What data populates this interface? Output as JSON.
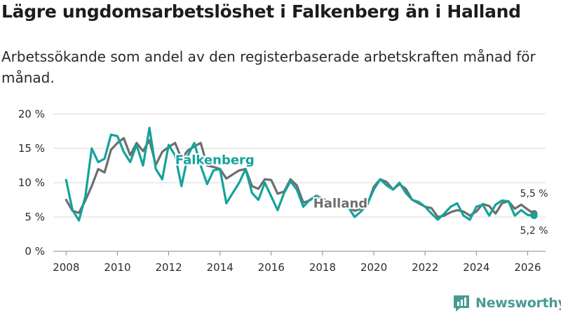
{
  "title": "Lägre ungdomsarbetslöshet i Falkenberg än i Halland",
  "subtitle": "Arbetssökande som andel av den registerbaserade arbetskraften månad för månad.",
  "brand": {
    "name": "Newsworthy",
    "color": "#4a9a94"
  },
  "chart_data": {
    "type": "line",
    "title": "Lägre ungdomsarbetslöshet i Falkenberg än i Halland",
    "xlabel": "",
    "ylabel": "",
    "xlim": [
      2007.5,
      2026.7
    ],
    "ylim": [
      0,
      20
    ],
    "y_ticks": [
      0,
      5,
      10,
      15,
      20
    ],
    "y_tick_labels": [
      "0 %",
      "5 %",
      "10 %",
      "15 %",
      "20 %"
    ],
    "x_ticks": [
      2008,
      2010,
      2012,
      2014,
      2016,
      2018,
      2020,
      2022,
      2024,
      2026
    ],
    "x_tick_labels": [
      "2008",
      "2010",
      "2012",
      "2014",
      "2016",
      "2018",
      "2020",
      "2022",
      "2024",
      "2026"
    ],
    "grid": true,
    "series": [
      {
        "name": "Halland",
        "color": "#6e6e6e",
        "label_pos": [
          2018.7,
          6.4
        ],
        "end_label": "5,5 %",
        "x": [
          2008.0,
          2008.25,
          2008.5,
          2008.75,
          2009.0,
          2009.25,
          2009.5,
          2009.75,
          2010.0,
          2010.25,
          2010.5,
          2010.75,
          2011.0,
          2011.25,
          2011.5,
          2011.75,
          2012.0,
          2012.25,
          2012.5,
          2012.75,
          2013.0,
          2013.25,
          2013.5,
          2013.75,
          2014.0,
          2014.25,
          2014.5,
          2014.75,
          2015.0,
          2015.25,
          2015.5,
          2015.75,
          2016.0,
          2016.25,
          2016.5,
          2016.75,
          2017.0,
          2017.25,
          2017.5,
          2017.75,
          2018.0,
          2018.25,
          2018.5,
          2018.75,
          2019.0,
          2019.25,
          2019.5,
          2019.75,
          2020.0,
          2020.25,
          2020.5,
          2020.75,
          2021.0,
          2021.25,
          2021.5,
          2021.75,
          2022.0,
          2022.25,
          2022.5,
          2022.75,
          2023.0,
          2023.25,
          2023.5,
          2023.75,
          2024.0,
          2024.25,
          2024.5,
          2024.75,
          2025.0,
          2025.25,
          2025.5,
          2025.75,
          2026.0,
          2026.25
        ],
        "values": [
          7.5,
          5.9,
          5.6,
          7.4,
          9.5,
          12.0,
          11.5,
          14.8,
          15.8,
          16.5,
          14.0,
          15.8,
          14.6,
          16.2,
          12.6,
          14.5,
          15.2,
          15.8,
          13.5,
          14.7,
          15.3,
          15.8,
          12.5,
          12.3,
          12.0,
          10.6,
          11.2,
          11.8,
          12.0,
          9.5,
          9.1,
          10.5,
          10.4,
          8.4,
          8.7,
          10.5,
          9.6,
          7.1,
          7.4,
          8.1,
          7.7,
          7.2,
          6.5,
          7.2,
          6.5,
          5.9,
          6.2,
          6.8,
          9.4,
          10.5,
          10.1,
          9.0,
          9.8,
          9.1,
          7.5,
          7.0,
          6.5,
          6.3,
          5.0,
          5.2,
          5.7,
          6.0,
          5.8,
          5.2,
          5.8,
          6.9,
          6.6,
          5.5,
          7.0,
          7.3,
          6.2,
          6.8,
          6.1,
          5.5
        ]
      },
      {
        "name": "Falkenberg",
        "color": "#14a39a",
        "label_pos": [
          2013.8,
          12.7
        ],
        "end_label": "5,2 %",
        "x": [
          2008.0,
          2008.25,
          2008.5,
          2008.75,
          2009.0,
          2009.25,
          2009.5,
          2009.75,
          2010.0,
          2010.25,
          2010.5,
          2010.75,
          2011.0,
          2011.25,
          2011.5,
          2011.75,
          2012.0,
          2012.25,
          2012.5,
          2012.75,
          2013.0,
          2013.25,
          2013.5,
          2013.75,
          2014.0,
          2014.25,
          2014.5,
          2014.75,
          2015.0,
          2015.25,
          2015.5,
          2015.75,
          2016.0,
          2016.25,
          2016.5,
          2016.75,
          2017.0,
          2017.25,
          2017.5,
          2017.75,
          2018.0,
          2018.25,
          2018.5,
          2018.75,
          2019.0,
          2019.25,
          2019.5,
          2019.75,
          2020.0,
          2020.25,
          2020.5,
          2020.75,
          2021.0,
          2021.25,
          2021.5,
          2021.75,
          2022.0,
          2022.25,
          2022.5,
          2022.75,
          2023.0,
          2023.25,
          2023.5,
          2023.75,
          2024.0,
          2024.25,
          2024.5,
          2024.75,
          2025.0,
          2025.25,
          2025.5,
          2025.75,
          2026.0,
          2026.25
        ],
        "values": [
          10.4,
          6.0,
          4.5,
          8.0,
          15.0,
          13.0,
          13.5,
          17.0,
          16.8,
          14.5,
          13.0,
          15.5,
          12.5,
          18.0,
          12.0,
          10.5,
          15.5,
          14.0,
          9.5,
          14.0,
          15.8,
          12.5,
          9.8,
          11.8,
          12.0,
          7.0,
          8.5,
          10.0,
          12.0,
          8.5,
          7.5,
          10.0,
          8.0,
          6.0,
          8.5,
          10.2,
          9.0,
          6.5,
          7.5,
          8.0,
          7.6,
          6.5,
          7.5,
          6.8,
          6.5,
          5.0,
          5.8,
          6.9,
          9.0,
          10.5,
          9.6,
          9.0,
          10.0,
          8.5,
          7.5,
          7.2,
          6.5,
          5.5,
          4.6,
          5.5,
          6.5,
          7.0,
          5.2,
          4.6,
          6.5,
          6.8,
          5.2,
          6.8,
          7.4,
          7.3,
          5.2,
          6.0,
          5.3,
          5.2
        ]
      }
    ]
  }
}
